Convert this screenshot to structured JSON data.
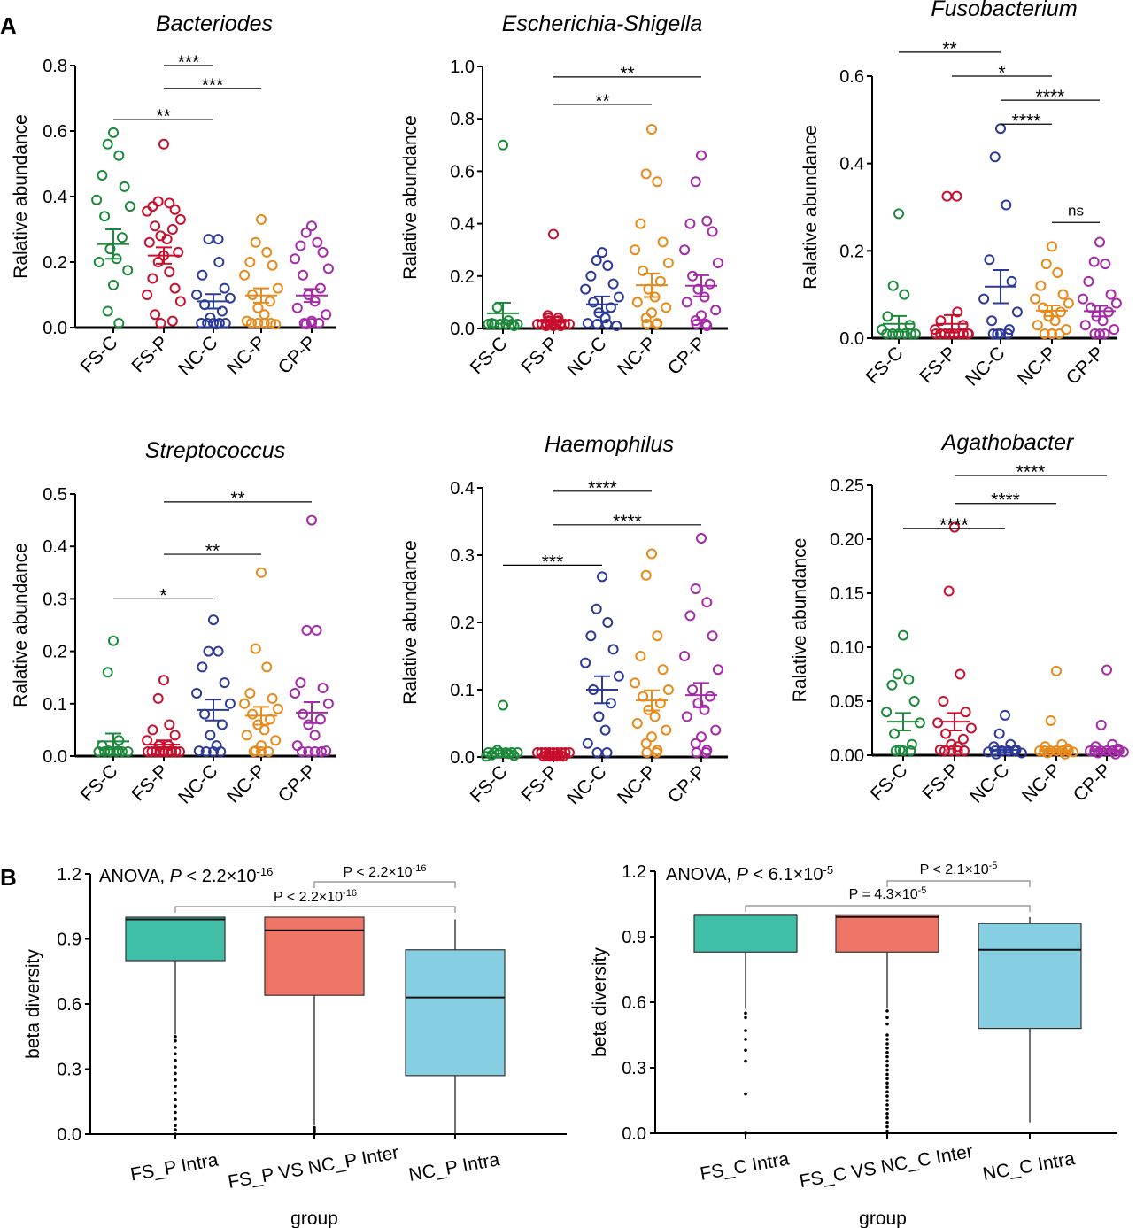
{
  "figure_labels": [
    "A",
    "B"
  ],
  "colors": {
    "groups": [
      "#1a8a3a",
      "#c8102e",
      "#2b3a9a",
      "#e88a1a",
      "#a52aa8"
    ],
    "box_fills": [
      "#3fbfa8",
      "#ef7566",
      "#86cfe2"
    ]
  },
  "chart_data": [
    {
      "type": "scatter",
      "title": "Bacteriodes",
      "ylabel": "Ralative abundance",
      "categories": [
        "FS-C",
        "FS-P",
        "NC-C",
        "NC-P",
        "CP-P"
      ],
      "ylim": [
        0,
        0.8
      ],
      "yticks": [
        "0.0",
        "0.2",
        "0.4",
        "0.6",
        "0.8"
      ],
      "means": [
        0.255,
        0.22,
        0.08,
        0.098,
        0.098
      ],
      "sems": [
        0.045,
        0.025,
        0.022,
        0.022,
        0.02
      ],
      "points": [
        [
          0.595,
          0.56,
          0.525,
          0.465,
          0.43,
          0.39,
          0.37,
          0.34,
          0.275,
          0.24,
          0.21,
          0.2,
          0.175,
          0.13,
          0.05,
          0.0
        ],
        [
          0.56,
          0.385,
          0.38,
          0.37,
          0.36,
          0.355,
          0.33,
          0.31,
          0.3,
          0.28,
          0.27,
          0.26,
          0.23,
          0.22,
          0.2,
          0.17,
          0.15,
          0.12,
          0.1,
          0.08,
          0.04,
          0.02,
          0.0
        ],
        [
          0.27,
          0.27,
          0.2,
          0.16,
          0.12,
          0.1,
          0.09,
          0.07,
          0.05,
          0.03,
          0.01,
          0.0,
          0.0,
          0.0,
          0.0,
          0.0
        ],
        [
          0.33,
          0.26,
          0.23,
          0.2,
          0.19,
          0.16,
          0.12,
          0.1,
          0.08,
          0.06,
          0.04,
          0.02,
          0.01,
          0.0,
          0.0,
          0.0,
          0.0
        ],
        [
          0.31,
          0.29,
          0.26,
          0.25,
          0.23,
          0.21,
          0.18,
          0.16,
          0.12,
          0.1,
          0.08,
          0.06,
          0.04,
          0.02,
          0.01,
          0.0,
          0.0,
          0.0
        ]
      ],
      "brackets": [
        {
          "from": 1,
          "to": 2,
          "label": "***",
          "y": 0.8
        },
        {
          "from": 1,
          "to": 3,
          "label": "***",
          "y": 0.73
        },
        {
          "from": 0,
          "to": 2,
          "label": "**",
          "y": 0.635
        }
      ]
    },
    {
      "type": "scatter",
      "title": "Escherichia-Shigella",
      "ylabel": "Ralative abundance",
      "categories": [
        "FS-C",
        "FS-P",
        "NC-C",
        "NC-P",
        "CP-P"
      ],
      "ylim": [
        0,
        1.0
      ],
      "yticks": [
        "0.0",
        "0.2",
        "0.4",
        "0.6",
        "0.8",
        "1.0"
      ],
      "means": [
        0.058,
        0.028,
        0.092,
        0.165,
        0.163
      ],
      "sems": [
        0.04,
        0.015,
        0.03,
        0.045,
        0.04
      ],
      "points": [
        [
          0.7,
          0.08,
          0.03,
          0.02,
          0.01,
          0.0,
          0.0,
          0.0,
          0.0,
          0.0,
          0.0
        ],
        [
          0.36,
          0.05,
          0.04,
          0.04,
          0.03,
          0.03,
          0.02,
          0.02,
          0.02,
          0.01,
          0.01,
          0.01,
          0.0,
          0.0,
          0.0,
          0.0,
          0.0,
          0.0,
          0.0,
          0.0
        ],
        [
          0.29,
          0.26,
          0.24,
          0.2,
          0.17,
          0.15,
          0.12,
          0.1,
          0.08,
          0.06,
          0.04,
          0.02,
          0.01,
          0.0,
          0.0
        ],
        [
          0.76,
          0.59,
          0.56,
          0.4,
          0.33,
          0.3,
          0.25,
          0.22,
          0.18,
          0.15,
          0.12,
          0.1,
          0.08,
          0.06,
          0.04,
          0.02,
          0.0,
          0.0
        ],
        [
          0.66,
          0.56,
          0.41,
          0.4,
          0.37,
          0.3,
          0.25,
          0.2,
          0.17,
          0.15,
          0.12,
          0.1,
          0.07,
          0.05,
          0.03,
          0.01,
          0.0,
          0.0
        ]
      ],
      "brackets": [
        {
          "from": 1,
          "to": 4,
          "label": "**",
          "y": 0.96
        },
        {
          "from": 1,
          "to": 3,
          "label": "**",
          "y": 0.855
        }
      ]
    },
    {
      "type": "scatter",
      "title": "Fusobacterium",
      "ylabel": "Ralative abundance",
      "categories": [
        "FS-C",
        "FS-P",
        "NC-C",
        "NC-P",
        "CP-P"
      ],
      "ylim": [
        0,
        0.6
      ],
      "yticks": [
        "0.0",
        "0.2",
        "0.4",
        "0.6"
      ],
      "means": [
        0.033,
        0.033,
        0.118,
        0.063,
        0.062
      ],
      "sems": [
        0.018,
        0.02,
        0.038,
        0.012,
        0.012
      ],
      "points": [
        [
          0.285,
          0.12,
          0.1,
          0.05,
          0.03,
          0.02,
          0.01,
          0.0,
          0.0,
          0.0,
          0.0,
          0.0
        ],
        [
          0.325,
          0.325,
          0.06,
          0.04,
          0.03,
          0.02,
          0.01,
          0.0,
          0.0,
          0.0,
          0.0,
          0.0,
          0.0,
          0.0,
          0.0
        ],
        [
          0.48,
          0.415,
          0.305,
          0.18,
          0.13,
          0.09,
          0.06,
          0.04,
          0.02,
          0.01,
          0.0,
          0.0,
          0.0
        ],
        [
          0.21,
          0.17,
          0.15,
          0.12,
          0.1,
          0.09,
          0.08,
          0.07,
          0.06,
          0.05,
          0.04,
          0.03,
          0.02,
          0.01,
          0.0,
          0.0,
          0.0
        ],
        [
          0.22,
          0.175,
          0.17,
          0.13,
          0.1,
          0.09,
          0.08,
          0.07,
          0.06,
          0.05,
          0.04,
          0.03,
          0.02,
          0.01,
          0.0,
          0.0
        ]
      ],
      "brackets": [
        {
          "from": 0,
          "to": 2,
          "label": "**",
          "y": 0.655
        },
        {
          "from": 1,
          "to": 3,
          "label": "*",
          "y": 0.6
        },
        {
          "from": 2,
          "to": 4,
          "label": "****",
          "y": 0.545
        },
        {
          "from": 2,
          "to": 3,
          "label": "****",
          "y": 0.49
        },
        {
          "from": 3,
          "to": 4,
          "label": "ns",
          "y": 0.265
        }
      ]
    },
    {
      "type": "scatter",
      "title": "Streptococcus",
      "ylabel": "Ralative abundance",
      "categories": [
        "FS-C",
        "FS-P",
        "NC-C",
        "NC-P",
        "CP-P"
      ],
      "ylim": [
        0,
        0.5
      ],
      "yticks": [
        "0.0",
        "0.1",
        "0.2",
        "0.3",
        "0.4",
        "0.5"
      ],
      "means": [
        0.028,
        0.022,
        0.088,
        0.077,
        0.083
      ],
      "sems": [
        0.015,
        0.008,
        0.02,
        0.017,
        0.02
      ],
      "points": [
        [
          0.22,
          0.16,
          0.03,
          0.02,
          0.01,
          0.01,
          0.0,
          0.0,
          0.0,
          0.0,
          0.0,
          0.0
        ],
        [
          0.145,
          0.11,
          0.06,
          0.05,
          0.04,
          0.03,
          0.02,
          0.02,
          0.01,
          0.01,
          0.01,
          0.0,
          0.0,
          0.0,
          0.0,
          0.0,
          0.0,
          0.0,
          0.0,
          0.0
        ],
        [
          0.26,
          0.2,
          0.2,
          0.17,
          0.14,
          0.12,
          0.1,
          0.08,
          0.06,
          0.04,
          0.02,
          0.01,
          0.0,
          0.0,
          0.0
        ],
        [
          0.35,
          0.205,
          0.17,
          0.12,
          0.11,
          0.1,
          0.09,
          0.08,
          0.07,
          0.06,
          0.05,
          0.04,
          0.03,
          0.02,
          0.01,
          0.0,
          0.0,
          0.0
        ],
        [
          0.45,
          0.24,
          0.24,
          0.14,
          0.13,
          0.12,
          0.1,
          0.08,
          0.07,
          0.06,
          0.04,
          0.02,
          0.01,
          0.0,
          0.0,
          0.0,
          0.0
        ]
      ],
      "brackets": [
        {
          "from": 1,
          "to": 4,
          "label": "**",
          "y": 0.485
        },
        {
          "from": 1,
          "to": 3,
          "label": "**",
          "y": 0.385
        },
        {
          "from": 0,
          "to": 2,
          "label": "*",
          "y": 0.3
        }
      ]
    },
    {
      "type": "scatter",
      "title": "Haemophilus",
      "ylabel": "Ralative abundance",
      "categories": [
        "FS-C",
        "FS-P",
        "NC-C",
        "NC-P",
        "CP-P"
      ],
      "ylim": [
        0,
        0.4
      ],
      "yticks": [
        "0.0",
        "0.1",
        "0.2",
        "0.3",
        "0.4"
      ],
      "means": [
        0.005,
        0.002,
        0.1,
        0.084,
        0.092
      ],
      "sems": [
        0.005,
        0.002,
        0.02,
        0.015,
        0.018
      ],
      "points": [
        [
          0.077,
          0.01,
          0.005,
          0.003,
          0.002,
          0.001,
          0.0,
          0.0,
          0.0,
          0.0,
          0.0,
          0.0
        ],
        [
          0.003,
          0.003,
          0.002,
          0.002,
          0.002,
          0.001,
          0.001,
          0.001,
          0.001,
          0.0,
          0.0,
          0.0,
          0.0,
          0.0,
          0.0,
          0.0,
          0.0,
          0.0
        ],
        [
          0.268,
          0.22,
          0.2,
          0.18,
          0.16,
          0.14,
          0.12,
          0.1,
          0.08,
          0.06,
          0.04,
          0.02,
          0.0,
          0.0
        ],
        [
          0.302,
          0.27,
          0.18,
          0.15,
          0.13,
          0.11,
          0.1,
          0.09,
          0.08,
          0.07,
          0.06,
          0.05,
          0.04,
          0.03,
          0.02,
          0.01,
          0.0,
          0.0
        ],
        [
          0.325,
          0.25,
          0.23,
          0.21,
          0.18,
          0.15,
          0.13,
          0.1,
          0.09,
          0.08,
          0.07,
          0.06,
          0.04,
          0.03,
          0.02,
          0.01,
          0.0,
          0.0
        ]
      ],
      "brackets": [
        {
          "from": 1,
          "to": 3,
          "label": "****",
          "y": 0.395
        },
        {
          "from": 1,
          "to": 4,
          "label": "****",
          "y": 0.345
        },
        {
          "from": 0,
          "to": 2,
          "label": "***",
          "y": 0.285
        }
      ]
    },
    {
      "type": "scatter",
      "title": "Agathobacter",
      "ylabel": "Ralative abundance",
      "categories": [
        "FS-C",
        "FS-P",
        "NC-C",
        "NC-P",
        "CP-P"
      ],
      "ylim": [
        0,
        0.25
      ],
      "yticks": [
        "0.00",
        "0.05",
        "0.10",
        "0.15",
        "0.20",
        "0.25"
      ],
      "means": [
        0.031,
        0.031,
        0.005,
        0.004,
        0.004
      ],
      "sems": [
        0.008,
        0.008,
        0.002,
        0.002,
        0.002
      ],
      "points": [
        [
          0.111,
          0.075,
          0.07,
          0.065,
          0.05,
          0.04,
          0.03,
          0.02,
          0.01,
          0.005,
          0.0,
          0.0,
          0.0
        ],
        [
          0.211,
          0.152,
          0.075,
          0.05,
          0.04,
          0.03,
          0.025,
          0.02,
          0.015,
          0.01,
          0.008,
          0.005,
          0.0,
          0.0,
          0.0,
          0.0
        ],
        [
          0.037,
          0.02,
          0.01,
          0.008,
          0.005,
          0.003,
          0.002,
          0.001,
          0.0,
          0.0,
          0.0,
          0.0
        ],
        [
          0.078,
          0.032,
          0.01,
          0.008,
          0.006,
          0.004,
          0.003,
          0.002,
          0.001,
          0.0,
          0.0,
          0.0,
          0.0,
          0.0
        ],
        [
          0.079,
          0.028,
          0.01,
          0.008,
          0.006,
          0.004,
          0.003,
          0.002,
          0.001,
          0.0,
          0.0,
          0.0,
          0.0,
          0.0
        ]
      ],
      "brackets": [
        {
          "from": 1,
          "to": 4,
          "label": "****",
          "y": 0.259
        },
        {
          "from": 1,
          "to": 3,
          "label": "****",
          "y": 0.233
        },
        {
          "from": 0,
          "to": 2,
          "label": "****",
          "y": 0.21
        }
      ]
    },
    {
      "type": "box",
      "xlabel": "group",
      "ylabel": "beta diversity",
      "ylim": [
        0,
        1.2
      ],
      "yticks": [
        "0.0",
        "0.3",
        "0.6",
        "0.9",
        "1.2"
      ],
      "categories": [
        "FS_P Intra",
        "FS_P VS NC_P Inter",
        "NC_P Intra"
      ],
      "boxes": [
        {
          "q1": 0.8,
          "median": 0.99,
          "q3": 1.0,
          "lower": 0.46,
          "upper": 1.0,
          "outliers": [
            0.45,
            0.43,
            0.4,
            0.37,
            0.34,
            0.31,
            0.28,
            0.25,
            0.22,
            0.19,
            0.16,
            0.13,
            0.1,
            0.07,
            0.04,
            0.02,
            0.0
          ]
        },
        {
          "q1": 0.64,
          "median": 0.94,
          "q3": 1.0,
          "lower": 0.04,
          "upper": 1.0,
          "outliers": [
            0.03,
            0.02,
            0.01,
            0.0
          ]
        },
        {
          "q1": 0.27,
          "median": 0.63,
          "q3": 0.85,
          "lower": 0.0,
          "upper": 0.99,
          "outliers": []
        }
      ],
      "anova": {
        "prefix": "ANOVA, ",
        "pvar": "P",
        "rel": " < 2.2×10",
        "exp": "-16"
      },
      "comparisons": [
        {
          "from": 1,
          "to": 2,
          "label_base": "P < 2.2×10",
          "exp": "-16"
        },
        {
          "from": 0,
          "to": 2,
          "label_base": "P < 2.2×10",
          "exp": "-16"
        }
      ]
    },
    {
      "type": "box",
      "xlabel": "group",
      "ylabel": "beta diversity",
      "ylim": [
        0,
        1.2
      ],
      "yticks": [
        "0.0",
        "0.3",
        "0.6",
        "0.9",
        "1.2"
      ],
      "categories": [
        "FS_C Intra",
        "FS_C VS NC_C Inter",
        "NC_C Intra"
      ],
      "boxes": [
        {
          "q1": 0.83,
          "median": 1.0,
          "q3": 1.0,
          "lower": 0.57,
          "upper": 1.0,
          "outliers": [
            0.55,
            0.53,
            0.47,
            0.43,
            0.38,
            0.33,
            0.18,
            0.0
          ]
        },
        {
          "q1": 0.83,
          "median": 0.99,
          "q3": 1.0,
          "lower": 0.57,
          "upper": 1.0,
          "outliers": [
            0.56,
            0.53,
            0.5,
            0.45,
            0.43,
            0.41,
            0.39,
            0.37,
            0.35,
            0.33,
            0.31,
            0.29,
            0.27,
            0.25,
            0.23,
            0.21,
            0.19,
            0.17,
            0.15,
            0.13,
            0.11,
            0.09,
            0.07,
            0.05,
            0.03,
            0.01
          ]
        },
        {
          "q1": 0.48,
          "median": 0.84,
          "q3": 0.96,
          "lower": 0.05,
          "upper": 0.99,
          "outliers": []
        }
      ],
      "anova": {
        "prefix": "ANOVA, ",
        "pvar": "P",
        "rel": " < 6.1×10",
        "exp": "-5"
      },
      "comparisons": [
        {
          "from": 1,
          "to": 2,
          "label_base": "P < 2.1×10",
          "exp": "-5"
        },
        {
          "from": 0,
          "to": 2,
          "label_base": "P = 4.3×10",
          "exp": "-5"
        }
      ]
    }
  ]
}
